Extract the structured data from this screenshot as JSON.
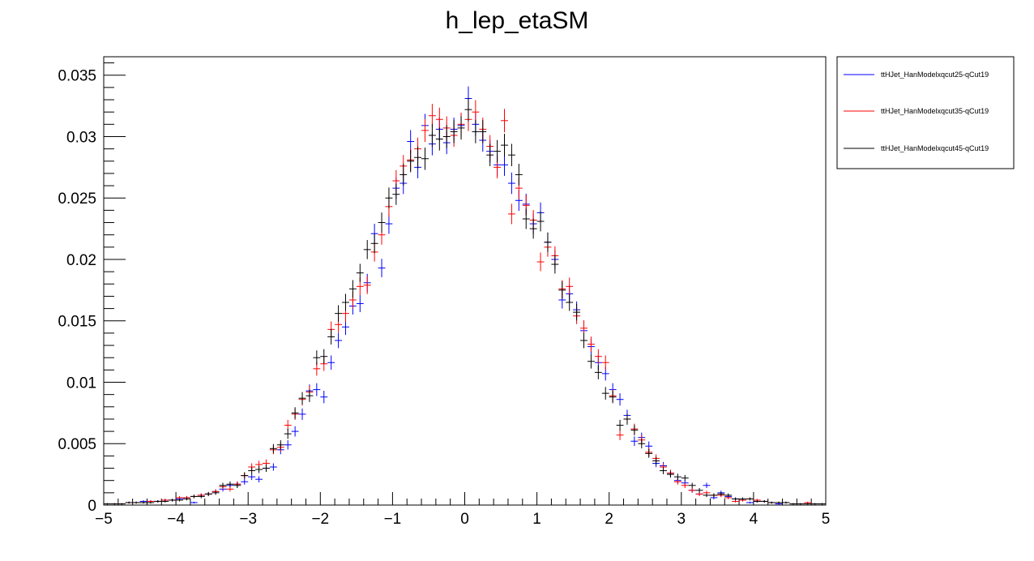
{
  "chart_data": {
    "type": "scatter",
    "title": "h_lep_etaSM",
    "xlabel": "",
    "ylabel": "",
    "xlim": [
      -5,
      5
    ],
    "ylim": [
      0,
      0.0365
    ],
    "x_major_ticks": [
      -5,
      -4,
      -3,
      -2,
      -1,
      0,
      1,
      2,
      3,
      4,
      5
    ],
    "x_tick_labels": [
      "−5",
      "−4",
      "−3",
      "−2",
      "−1",
      "0",
      "1",
      "2",
      "3",
      "4",
      "5"
    ],
    "y_major_ticks": [
      0,
      0.005,
      0.01,
      0.015,
      0.02,
      0.025,
      0.03,
      0.035
    ],
    "y_tick_labels": [
      "0",
      "0.005",
      "0.01",
      "0.015",
      "0.02",
      "0.025",
      "0.03",
      "0.035"
    ],
    "bin_width": 0.1,
    "grid": false,
    "legend_position": "right, outside plot",
    "series": [
      {
        "name": "ttHJet_HanModelxqcut25-qCut19",
        "color": "#0000ff",
        "x": [
          -4.95,
          -4.85,
          -4.75,
          -4.65,
          -4.55,
          -4.45,
          -4.35,
          -4.25,
          -4.15,
          -4.05,
          -3.95,
          -3.85,
          -3.75,
          -3.65,
          -3.55,
          -3.45,
          -3.35,
          -3.25,
          -3.15,
          -3.05,
          -2.95,
          -2.85,
          -2.75,
          -2.65,
          -2.55,
          -2.45,
          -2.35,
          -2.25,
          -2.15,
          -2.05,
          -1.95,
          -1.85,
          -1.75,
          -1.65,
          -1.55,
          -1.45,
          -1.35,
          -1.25,
          -1.15,
          -1.05,
          -0.95,
          -0.85,
          -0.75,
          -0.65,
          -0.55,
          -0.45,
          -0.35,
          -0.25,
          -0.15,
          -0.05,
          0.05,
          0.15,
          0.25,
          0.35,
          0.45,
          0.55,
          0.65,
          0.75,
          0.85,
          0.95,
          1.05,
          1.15,
          1.25,
          1.35,
          1.45,
          1.55,
          1.65,
          1.75,
          1.85,
          1.95,
          2.05,
          2.15,
          2.25,
          2.35,
          2.45,
          2.55,
          2.65,
          2.75,
          2.85,
          2.95,
          3.05,
          3.15,
          3.25,
          3.35,
          3.45,
          3.55,
          3.65,
          3.75,
          3.85,
          3.95,
          4.05,
          4.15,
          4.25,
          4.35,
          4.45,
          4.55,
          4.65,
          4.75,
          4.85,
          4.95
        ],
        "y": [
          0.0001,
          0.0001,
          0.0001,
          0.0002,
          0.0002,
          0.0003,
          0.0003,
          0.0003,
          0.0004,
          0.0004,
          0.0005,
          0.0006,
          0.0002,
          0.0008,
          0.0009,
          0.0011,
          0.0013,
          0.0016,
          0.0017,
          0.0019,
          0.0023,
          0.0021,
          0.003,
          0.0031,
          0.0045,
          0.0049,
          0.006,
          0.0074,
          0.0093,
          0.0094,
          0.0088,
          0.0116,
          0.0134,
          0.0145,
          0.0162,
          0.0164,
          0.0181,
          0.0221,
          0.0193,
          0.0229,
          0.0258,
          0.0262,
          0.0296,
          0.0275,
          0.0309,
          0.0294,
          0.0306,
          0.0295,
          0.0306,
          0.0309,
          0.0331,
          0.031,
          0.0297,
          0.0288,
          0.0277,
          0.0277,
          0.0262,
          0.0248,
          0.0245,
          0.0229,
          0.0238,
          0.0214,
          0.02,
          0.0167,
          0.0172,
          0.0159,
          0.0142,
          0.0129,
          0.0116,
          0.0107,
          0.0094,
          0.0086,
          0.0073,
          0.0052,
          0.0055,
          0.0048,
          0.0034,
          0.0032,
          0.0026,
          0.002,
          0.0018,
          0.0012,
          0.0009,
          0.0016,
          0.0006,
          0.001,
          0.0007,
          0.0005,
          0.0004,
          0.0002,
          0.0003,
          0.0003,
          0.0002,
          0.0001,
          0.0002,
          0.0001,
          0.0001,
          0.0001,
          0.0001,
          0.0001
        ]
      },
      {
        "name": "ttHJet_HanModelxqcut35-qCut19",
        "color": "#ff0000",
        "x": [
          -4.95,
          -4.85,
          -4.75,
          -4.65,
          -4.55,
          -4.45,
          -4.35,
          -4.25,
          -4.15,
          -4.05,
          -3.95,
          -3.85,
          -3.75,
          -3.65,
          -3.55,
          -3.45,
          -3.35,
          -3.25,
          -3.15,
          -3.05,
          -2.95,
          -2.85,
          -2.75,
          -2.65,
          -2.55,
          -2.45,
          -2.35,
          -2.25,
          -2.15,
          -2.05,
          -1.95,
          -1.85,
          -1.75,
          -1.65,
          -1.55,
          -1.45,
          -1.35,
          -1.25,
          -1.15,
          -1.05,
          -0.95,
          -0.85,
          -0.75,
          -0.65,
          -0.55,
          -0.45,
          -0.35,
          -0.25,
          -0.15,
          -0.05,
          0.05,
          0.15,
          0.25,
          0.35,
          0.45,
          0.55,
          0.65,
          0.75,
          0.85,
          0.95,
          1.05,
          1.15,
          1.25,
          1.35,
          1.45,
          1.55,
          1.65,
          1.75,
          1.85,
          1.95,
          2.05,
          2.15,
          2.25,
          2.35,
          2.45,
          2.55,
          2.65,
          2.75,
          2.85,
          2.95,
          3.05,
          3.15,
          3.25,
          3.35,
          3.45,
          3.55,
          3.65,
          3.75,
          3.85,
          3.95,
          4.05,
          4.15,
          4.25,
          4.35,
          4.45,
          4.55,
          4.65,
          4.75,
          4.85,
          4.95
        ],
        "y": [
          0.0001,
          0.0001,
          0.0001,
          0.0002,
          0.0002,
          0.0002,
          0.0003,
          0.0003,
          0.0004,
          0.0004,
          0.0006,
          0.0006,
          0.0007,
          0.0008,
          0.0009,
          0.0011,
          0.0015,
          0.0013,
          0.0017,
          0.0024,
          0.0031,
          0.0033,
          0.0034,
          0.0045,
          0.0047,
          0.0065,
          0.0074,
          0.0086,
          0.0092,
          0.0111,
          0.0115,
          0.0143,
          0.0147,
          0.0156,
          0.0167,
          0.0178,
          0.0179,
          0.0206,
          0.022,
          0.0243,
          0.0264,
          0.0276,
          0.0281,
          0.029,
          0.0305,
          0.0317,
          0.0314,
          0.0307,
          0.0301,
          0.031,
          0.0314,
          0.032,
          0.0306,
          0.0292,
          0.0275,
          0.0313,
          0.0237,
          0.0258,
          0.0244,
          0.0232,
          0.0198,
          0.021,
          0.0203,
          0.0176,
          0.0178,
          0.0154,
          0.0144,
          0.0131,
          0.0121,
          0.0116,
          0.0089,
          0.0057,
          0.007,
          0.0062,
          0.0053,
          0.0043,
          0.0038,
          0.0031,
          0.0026,
          0.0019,
          0.0016,
          0.0012,
          0.0009,
          0.001,
          0.0008,
          0.0008,
          0.0006,
          0.0003,
          0.0004,
          0.0005,
          0.0004,
          0.0003,
          0.0002,
          0.0002,
          0.0002,
          0.0001,
          0.0001,
          0.0002,
          0.0001,
          0.0001
        ]
      },
      {
        "name": "ttHJet_HanModelxqcut45-qCut19",
        "color": "#000000",
        "x": [
          -4.95,
          -4.85,
          -4.75,
          -4.65,
          -4.55,
          -4.45,
          -4.35,
          -4.25,
          -4.15,
          -4.05,
          -3.95,
          -3.85,
          -3.75,
          -3.65,
          -3.55,
          -3.45,
          -3.35,
          -3.25,
          -3.15,
          -3.05,
          -2.95,
          -2.85,
          -2.75,
          -2.65,
          -2.55,
          -2.45,
          -2.35,
          -2.25,
          -2.15,
          -2.05,
          -1.95,
          -1.85,
          -1.75,
          -1.65,
          -1.55,
          -1.45,
          -1.35,
          -1.25,
          -1.15,
          -1.05,
          -0.95,
          -0.85,
          -0.75,
          -0.65,
          -0.55,
          -0.45,
          -0.35,
          -0.25,
          -0.15,
          -0.05,
          0.05,
          0.15,
          0.25,
          0.35,
          0.45,
          0.55,
          0.65,
          0.75,
          0.85,
          0.95,
          1.05,
          1.15,
          1.25,
          1.35,
          1.45,
          1.55,
          1.65,
          1.75,
          1.85,
          1.95,
          2.05,
          2.15,
          2.25,
          2.35,
          2.45,
          2.55,
          2.65,
          2.75,
          2.85,
          2.95,
          3.05,
          3.15,
          3.25,
          3.35,
          3.45,
          3.55,
          3.65,
          3.75,
          3.85,
          3.95,
          4.05,
          4.15,
          4.25,
          4.35,
          4.45,
          4.55,
          4.65,
          4.75,
          4.85,
          4.95
        ],
        "y": [
          0.0001,
          0.0001,
          0.0001,
          0.0002,
          0.0002,
          0.0002,
          0.0002,
          0.0003,
          0.0003,
          0.0004,
          0.0004,
          0.0005,
          0.0007,
          0.0007,
          0.0009,
          0.001,
          0.0016,
          0.0017,
          0.0016,
          0.0024,
          0.0028,
          0.0029,
          0.003,
          0.0046,
          0.0049,
          0.0058,
          0.0075,
          0.0087,
          0.0089,
          0.012,
          0.0121,
          0.0137,
          0.0156,
          0.0165,
          0.0176,
          0.0189,
          0.0208,
          0.0213,
          0.023,
          0.025,
          0.0253,
          0.0269,
          0.028,
          0.0283,
          0.0282,
          0.0301,
          0.0298,
          0.03,
          0.0304,
          0.0307,
          0.0322,
          0.0304,
          0.0304,
          0.0285,
          0.0288,
          0.0293,
          0.0285,
          0.0269,
          0.0233,
          0.0225,
          0.0231,
          0.0214,
          0.0196,
          0.0175,
          0.0165,
          0.0157,
          0.0134,
          0.0117,
          0.0108,
          0.0091,
          0.0088,
          0.0065,
          0.007,
          0.0061,
          0.005,
          0.0042,
          0.0036,
          0.0028,
          0.0025,
          0.0023,
          0.0022,
          0.0016,
          0.0012,
          0.0008,
          0.0008,
          0.0009,
          0.0008,
          0.0005,
          0.0005,
          0.0005,
          0.0003,
          0.0003,
          0.0002,
          0.0002,
          0.0002,
          0.0001,
          0.0001,
          0.0001,
          0.0001,
          0.0001
        ]
      }
    ]
  }
}
